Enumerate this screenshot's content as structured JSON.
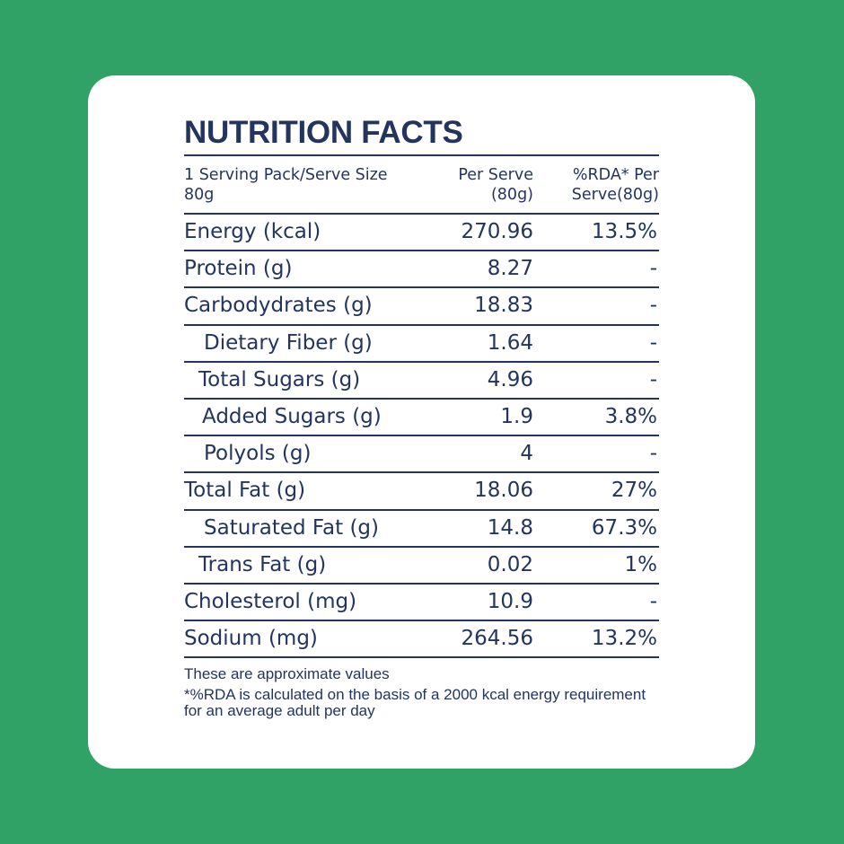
{
  "title": "NUTRITION FACTS",
  "header": {
    "serving": "1 Serving Pack/Serve Size 80g",
    "per_serve": "Per Serve (80g)",
    "rda": "%RDA* Per Serve(80g)"
  },
  "rows": [
    {
      "name": "Energy (kcal)",
      "value": "270.96",
      "rda": "13.5%"
    },
    {
      "name": "Protein (g)",
      "value": "8.27",
      "rda": "-"
    },
    {
      "name": "Carbodydrates (g)",
      "value": "18.83",
      "rda": "-"
    },
    {
      "name": "Dietary Fiber (g)",
      "value": "1.64",
      "rda": "-"
    },
    {
      "name": "Total Sugars (g)",
      "value": "4.96",
      "rda": "-"
    },
    {
      "name": "Added Sugars (g)",
      "value": "1.9",
      "rda": "3.8%"
    },
    {
      "name": "Polyols (g)",
      "value": "4",
      "rda": "-"
    },
    {
      "name": "Total Fat (g)",
      "value": "18.06",
      "rda": "27%"
    },
    {
      "name": "Saturated Fat (g)",
      "value": "14.8",
      "rda": "67.3%"
    },
    {
      "name": "Trans Fat (g)",
      "value": "0.02",
      "rda": "1%"
    },
    {
      "name": "Cholesterol (mg)",
      "value": "10.9",
      "rda": "-"
    },
    {
      "name": "Sodium (mg)",
      "value": "264.56",
      "rda": "13.2%"
    }
  ],
  "footnotes": {
    "approx": "These are approximate values",
    "rda_note": "*%RDA is calculated on the basis of a 2000 kcal energy requirement for an average adult per day"
  },
  "colors": {
    "background": "#31a266",
    "card": "#ffffff",
    "text": "#23345e"
  }
}
